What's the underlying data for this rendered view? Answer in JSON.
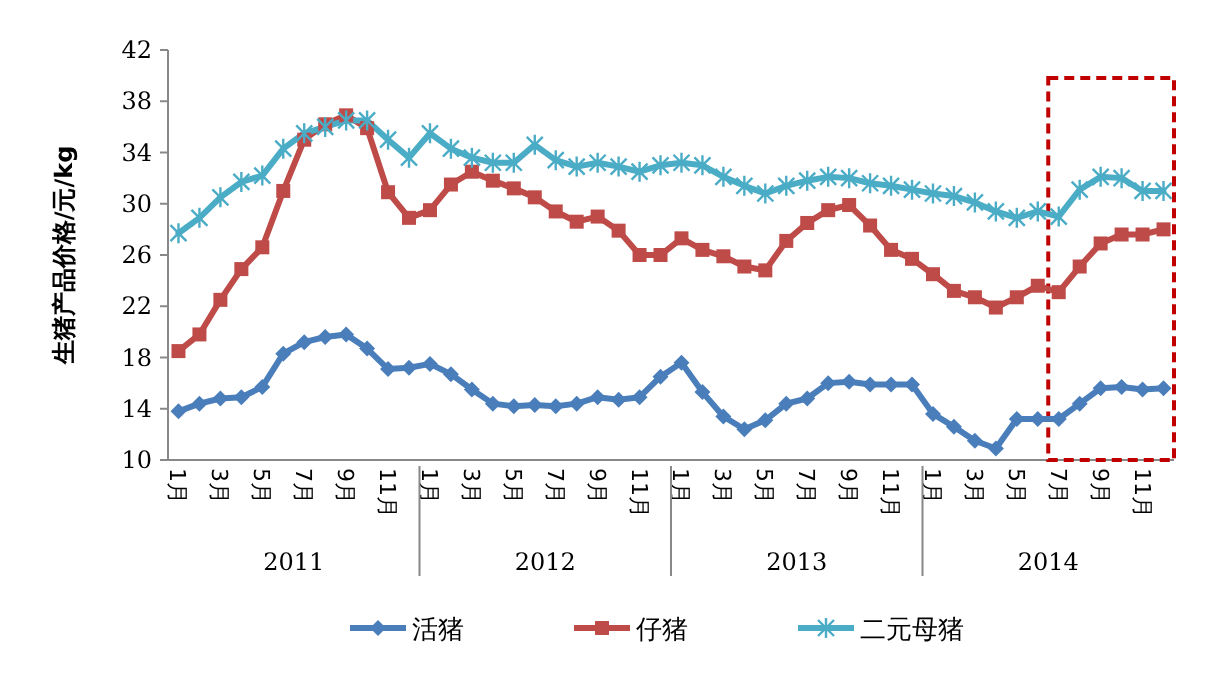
{
  "chart_data": {
    "type": "line",
    "ylabel": "生猪产品价格/元/kg",
    "categories": [
      "1月",
      null,
      "3月",
      null,
      "5月",
      null,
      "7月",
      null,
      "9月",
      null,
      "11月",
      null,
      "1月",
      null,
      "3月",
      null,
      "5月",
      null,
      "7月",
      null,
      "9月",
      null,
      "11月",
      null,
      "1月",
      null,
      "3月",
      null,
      "5月",
      null,
      "7月",
      null,
      "9月",
      null,
      "11月",
      null,
      "1月",
      null,
      "3月",
      null,
      "5月",
      null,
      "7月",
      null,
      "9月",
      null,
      "11月",
      null
    ],
    "annotations": [
      "2011",
      "2012",
      "2013",
      "2014"
    ],
    "series": [
      {
        "name": "活猪",
        "color": "#4a7ebb",
        "marker": "diamond",
        "values": [
          13.8,
          14.4,
          14.8,
          14.9,
          15.7,
          18.3,
          19.2,
          19.6,
          19.8,
          18.7,
          17.1,
          17.2,
          17.5,
          16.7,
          15.5,
          14.4,
          14.2,
          14.3,
          14.2,
          14.4,
          14.9,
          14.7,
          14.9,
          16.5,
          17.6,
          15.3,
          13.4,
          12.4,
          13.1,
          14.4,
          14.8,
          16.0,
          16.1,
          15.9,
          15.9,
          15.9,
          13.6,
          12.6,
          11.5,
          10.9,
          13.2,
          13.2,
          13.2,
          14.4,
          15.6,
          15.7,
          15.5,
          15.6
        ]
      },
      {
        "name": "仔猪",
        "color": "#be4b48",
        "marker": "square",
        "values": [
          18.5,
          19.8,
          22.5,
          24.9,
          26.6,
          31.0,
          35.0,
          36.2,
          36.9,
          35.9,
          30.9,
          28.9,
          29.5,
          31.5,
          32.5,
          31.8,
          31.2,
          30.5,
          29.4,
          28.6,
          29.0,
          27.9,
          26.0,
          26.0,
          27.3,
          26.4,
          25.9,
          25.1,
          24.8,
          27.1,
          28.5,
          29.5,
          29.9,
          28.3,
          26.4,
          25.7,
          24.5,
          23.2,
          22.7,
          21.9,
          22.7,
          23.6,
          23.1,
          25.1,
          26.9,
          27.6,
          27.6,
          28.0
        ]
      },
      {
        "name": "二元母猪",
        "color": "#4bacc6",
        "marker": "cross",
        "values": [
          27.7,
          28.9,
          30.5,
          31.7,
          32.2,
          34.3,
          35.5,
          36.0,
          36.5,
          36.5,
          35.0,
          33.6,
          35.5,
          34.3,
          33.6,
          33.2,
          33.2,
          34.6,
          33.4,
          32.9,
          33.2,
          32.9,
          32.5,
          33.0,
          33.2,
          33.0,
          32.1,
          31.4,
          30.8,
          31.4,
          31.8,
          32.1,
          32.0,
          31.6,
          31.4,
          31.1,
          30.8,
          30.6,
          30.1,
          29.4,
          28.9,
          29.4,
          29.0,
          31.1,
          32.1,
          32.0,
          31.0,
          31.0
        ]
      }
    ],
    "ylim": [
      10,
      42
    ],
    "yticks": [
      10,
      14,
      18,
      22,
      26,
      30,
      34,
      38,
      42
    ],
    "legend": "bottom",
    "line_style": "solid"
  }
}
